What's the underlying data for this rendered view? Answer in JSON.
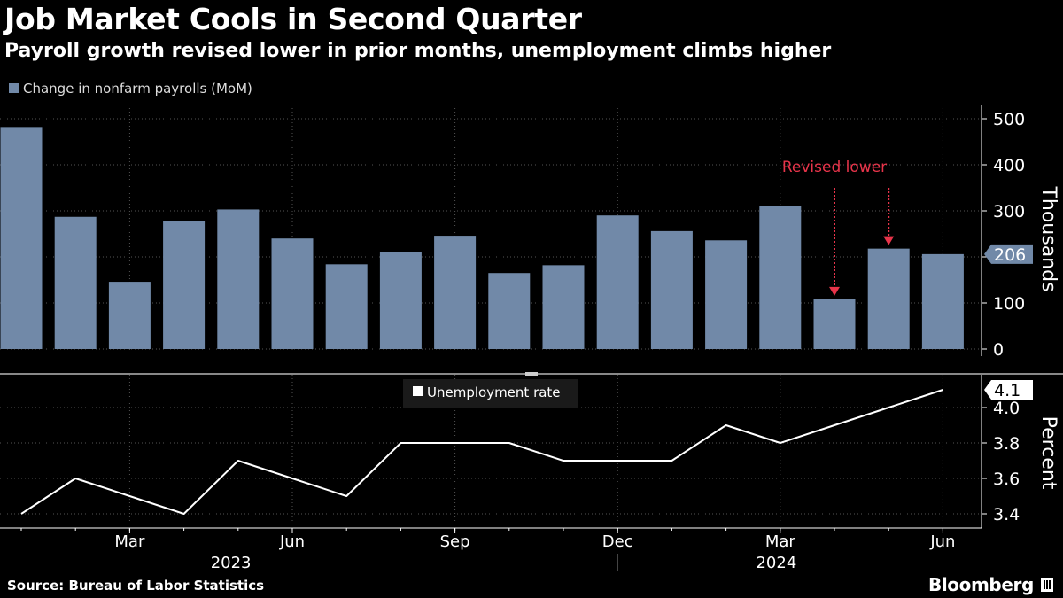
{
  "header": {
    "title": "Job Market Cools in Second Quarter",
    "subtitle": "Payroll growth revised lower in prior months, unemployment climbs higher"
  },
  "footer": {
    "source": "Source: Bureau of Labor Statistics",
    "brand": "Bloomberg"
  },
  "colors": {
    "background": "#000000",
    "bars": "#7189A8",
    "line": "#FFFFFF",
    "grid": "#555555",
    "annotation": "#E8344A"
  },
  "chart_data": [
    {
      "type": "bar",
      "legend": "Change in nonfarm payrolls (MoM)",
      "ylabel": "Thousands",
      "ylim": [
        -40,
        540
      ],
      "yticks": [
        0,
        100,
        200,
        300,
        400,
        500
      ],
      "categories": [
        "Jan 2023",
        "Feb 2023",
        "Mar 2023",
        "Apr 2023",
        "May 2023",
        "Jun 2023",
        "Jul 2023",
        "Aug 2023",
        "Sep 2023",
        "Oct 2023",
        "Nov 2023",
        "Dec 2023",
        "Jan 2024",
        "Feb 2024",
        "Mar 2024",
        "Apr 2024",
        "May 2024",
        "Jun 2024"
      ],
      "values": [
        482,
        287,
        146,
        278,
        303,
        240,
        184,
        210,
        246,
        165,
        182,
        290,
        256,
        236,
        310,
        108,
        218,
        206
      ],
      "last_value_label": "206",
      "annotation": {
        "text": "Revised lower",
        "arrows_on": [
          "Apr 2024",
          "May 2024"
        ]
      }
    },
    {
      "type": "line",
      "legend": "Unemployment rate",
      "ylabel": "Percent",
      "ylim": [
        3.35,
        4.15
      ],
      "yticks": [
        "3.4",
        "3.6",
        "3.8",
        "4.0"
      ],
      "x": [
        "Jan 2023",
        "Feb 2023",
        "Mar 2023",
        "Apr 2023",
        "May 2023",
        "Jun 2023",
        "Jul 2023",
        "Aug 2023",
        "Sep 2023",
        "Oct 2023",
        "Nov 2023",
        "Dec 2023",
        "Jan 2024",
        "Feb 2024",
        "Mar 2024",
        "Apr 2024",
        "May 2024",
        "Jun 2024"
      ],
      "values": [
        3.4,
        3.6,
        3.5,
        3.4,
        3.7,
        3.6,
        3.5,
        3.8,
        3.8,
        3.8,
        3.7,
        3.7,
        3.7,
        3.9,
        3.8,
        3.9,
        4.0,
        4.1
      ],
      "last_value_label": "4.1"
    }
  ],
  "x_axis": {
    "month_ticks": [
      {
        "month_index": 2,
        "label": "Mar"
      },
      {
        "month_index": 5,
        "label": "Jun"
      },
      {
        "month_index": 8,
        "label": "Sep"
      },
      {
        "month_index": 11,
        "label": "Dec"
      },
      {
        "month_index": 14,
        "label": "Mar"
      },
      {
        "month_index": 17,
        "label": "Jun"
      }
    ],
    "years": [
      {
        "center_index": 5.5,
        "label": "2023"
      },
      {
        "center_index": 14.5,
        "label": "2024"
      }
    ]
  }
}
